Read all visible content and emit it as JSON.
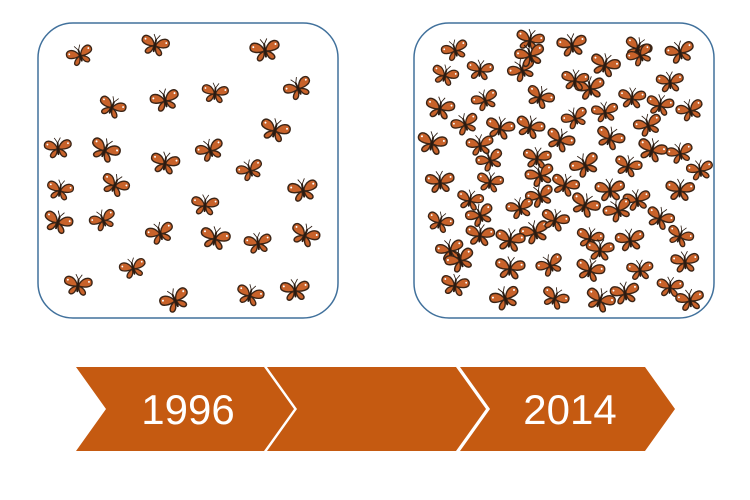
{
  "panels": [
    {
      "name": "panel-1996",
      "butterfly_count": 28
    },
    {
      "name": "panel-2014",
      "butterfly_count": 74
    }
  ],
  "timeline": {
    "start_label": "1996",
    "end_label": "2014",
    "arrow_color": "#c55a11"
  },
  "colors": {
    "panel_border": "#41719c",
    "butterfly_wing": "#c8622a",
    "butterfly_edge": "#3a2416",
    "background": "#ffffff"
  },
  "icons": {
    "butterfly": "monarch-butterfly-icon"
  }
}
